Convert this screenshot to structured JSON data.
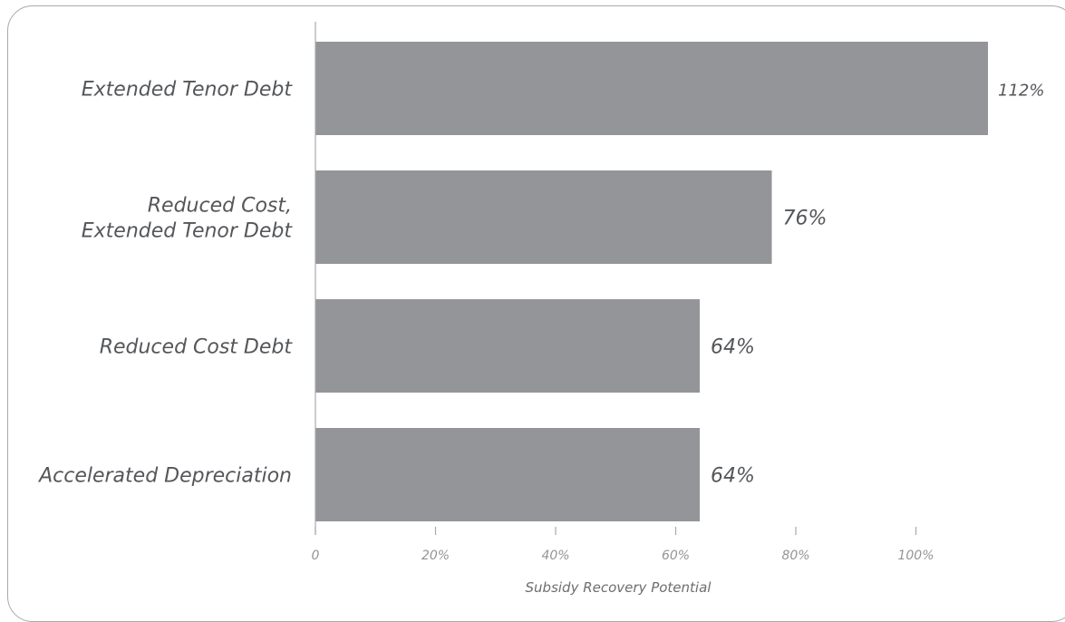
{
  "chart_data": {
    "type": "bar",
    "orientation": "horizontal",
    "categories": [
      [
        "Extended Tenor Debt"
      ],
      [
        "Reduced Cost,",
        "Extended Tenor Debt"
      ],
      [
        "Reduced Cost Debt"
      ],
      [
        "Accelerated Depreciation"
      ]
    ],
    "values": [
      112,
      76,
      64,
      64
    ],
    "value_labels": [
      "112%",
      "76%",
      "64%",
      "64%"
    ],
    "xlim": [
      0,
      112
    ],
    "x_ticks": [
      0,
      20,
      40,
      60,
      80,
      100
    ],
    "x_tick_labels": [
      "0",
      "20%",
      "40%",
      "60%",
      "80%",
      "100%"
    ],
    "xlabel": "Subsidy Recovery Potential",
    "ylabel": "",
    "title": "",
    "bar_color": "#939598",
    "grid": false,
    "legend": "none"
  }
}
